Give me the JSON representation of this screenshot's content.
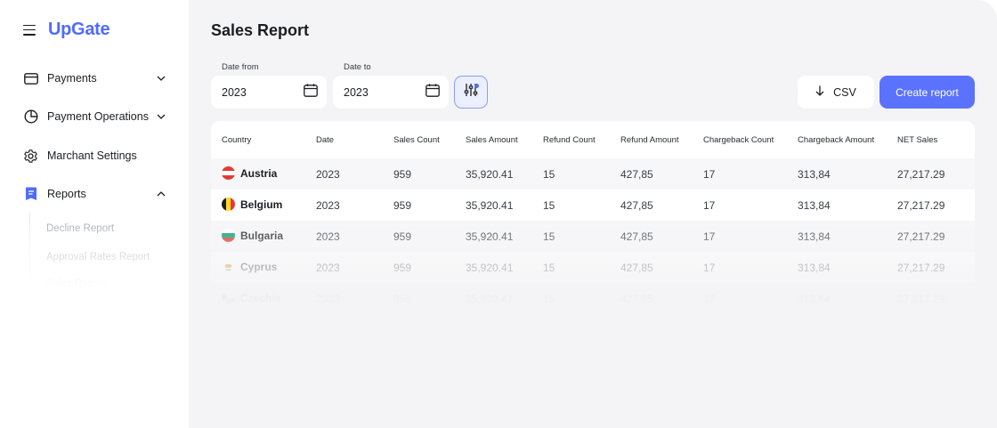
{
  "brand": {
    "name": "UpGate"
  },
  "sidebar": {
    "items": [
      {
        "label": "Payments",
        "icon": "card-icon",
        "expandable": true
      },
      {
        "label": "Payment Operations",
        "icon": "pie-chart-icon",
        "expandable": true
      },
      {
        "label": "Marchant Settings",
        "icon": "gear-icon",
        "expandable": false
      },
      {
        "label": "Reports",
        "icon": "report-icon",
        "expandable": true,
        "expanded": true
      }
    ],
    "sub_items": [
      {
        "label": "Decline Report"
      },
      {
        "label": "Approval Rates Report"
      },
      {
        "label": "Sales Report"
      }
    ]
  },
  "page": {
    "title": "Sales Report"
  },
  "filters": {
    "date_from": {
      "label": "Date from",
      "value": "2023"
    },
    "date_to": {
      "label": "Date to",
      "value": "2023"
    }
  },
  "actions": {
    "csv_label": "CSV",
    "create_label": "Create report"
  },
  "table": {
    "columns": [
      "Country",
      "Date",
      "Sales Count",
      "Sales Amount",
      "Refund Count",
      "Refund Amount",
      "Chargeback Count",
      "Chargeback Amount",
      "NET Sales"
    ],
    "rows": [
      {
        "country": "Austria",
        "date": "2023",
        "sales_count": "959",
        "sales_amount": "35,920.41",
        "refund_count": "15",
        "refund_amount": "427,85",
        "chargeback_count": "17",
        "chargeback_amount": "313,84",
        "net_sales": "27,217.29"
      },
      {
        "country": "Belgium",
        "date": "2023",
        "sales_count": "959",
        "sales_amount": "35,920.41",
        "refund_count": "15",
        "refund_amount": "427,85",
        "chargeback_count": "17",
        "chargeback_amount": "313,84",
        "net_sales": "27,217.29"
      },
      {
        "country": "Bulgaria",
        "date": "2023",
        "sales_count": "959",
        "sales_amount": "35,920.41",
        "refund_count": "15",
        "refund_amount": "427,85",
        "chargeback_count": "17",
        "chargeback_amount": "313,84",
        "net_sales": "27,217.29"
      },
      {
        "country": "Cyprus",
        "date": "2023",
        "sales_count": "959",
        "sales_amount": "35,920.41",
        "refund_count": "15",
        "refund_amount": "427,85",
        "chargeback_count": "17",
        "chargeback_amount": "313,84",
        "net_sales": "27,217.29"
      },
      {
        "country": "Czechia",
        "date": "2023",
        "sales_count": "959",
        "sales_amount": "35,920.41",
        "refund_count": "15",
        "refund_amount": "427,85",
        "chargeback_count": "17",
        "chargeback_amount": "313,84",
        "net_sales": "27,217.29"
      }
    ]
  },
  "colors": {
    "accent": "#5b72ff",
    "brand": "#4f6bff",
    "panel": "#f4f4f6",
    "report_icon": "#4f6bff"
  }
}
